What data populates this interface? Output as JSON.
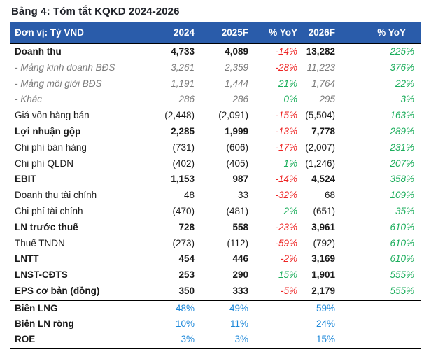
{
  "title": "Bảng 4: Tóm tắt KQKD 2024-2026",
  "table": {
    "unit_label": "Đơn vị: Tỷ VND",
    "columns": [
      "2024",
      "2025F",
      "% YoY",
      "2026F",
      "% YoY"
    ],
    "rows": [
      {
        "style": "bold",
        "label": "Doanh thu",
        "v2024": "4,733",
        "v2025": "4,089",
        "yoy25": "-14%",
        "v2026": "13,282",
        "yoy26": "225%"
      },
      {
        "style": "sub",
        "label": "- Mảng kinh doanh BĐS",
        "v2024": "3,261",
        "v2025": "2,359",
        "yoy25": "-28%",
        "v2026": "11,223",
        "yoy26": "376%"
      },
      {
        "style": "sub",
        "label": "- Mảng môi giới BĐS",
        "v2024": "1,191",
        "v2025": "1,444",
        "yoy25": "21%",
        "v2026": "1,764",
        "yoy26": "22%"
      },
      {
        "style": "sub",
        "label": "- Khác",
        "v2024": "286",
        "v2025": "286",
        "yoy25": "0%",
        "v2026": "295",
        "yoy26": "3%"
      },
      {
        "style": "normal",
        "label": "Giá vốn hàng bán",
        "v2024": "(2,448)",
        "v2025": "(2,091)",
        "yoy25": "-15%",
        "v2026": "(5,504)",
        "yoy26": "163%"
      },
      {
        "style": "bold",
        "label": "Lợi nhuận gộp",
        "v2024": "2,285",
        "v2025": "1,999",
        "yoy25": "-13%",
        "v2026": "7,778",
        "yoy26": "289%"
      },
      {
        "style": "normal",
        "label": "Chi phí bán hàng",
        "v2024": "(731)",
        "v2025": "(606)",
        "yoy25": "-17%",
        "v2026": "(2,007)",
        "yoy26": "231%"
      },
      {
        "style": "normal",
        "label": "Chi phí QLDN",
        "v2024": "(402)",
        "v2025": "(405)",
        "yoy25": "1%",
        "v2026": "(1,246)",
        "yoy26": "207%"
      },
      {
        "style": "bold",
        "label": "EBIT",
        "v2024": "1,153",
        "v2025": "987",
        "yoy25": "-14%",
        "v2026": "4,524",
        "yoy26": "358%"
      },
      {
        "style": "normal",
        "label": "Doanh thu tài chính",
        "v2024": "48",
        "v2025": "33",
        "yoy25": "-32%",
        "v2026": "68",
        "yoy26": "109%"
      },
      {
        "style": "normal",
        "label": "Chi phí tài chính",
        "v2024": "(470)",
        "v2025": "(481)",
        "yoy25": "2%",
        "v2026": "(651)",
        "yoy26": "35%"
      },
      {
        "style": "bold",
        "label": "LN trước thuế",
        "v2024": "728",
        "v2025": "558",
        "yoy25": "-23%",
        "v2026": "3,961",
        "yoy26": "610%"
      },
      {
        "style": "normal",
        "label": "Thuế TNDN",
        "v2024": "(273)",
        "v2025": "(112)",
        "yoy25": "-59%",
        "v2026": "(792)",
        "yoy26": "610%"
      },
      {
        "style": "bold",
        "label": "LNTT",
        "v2024": "454",
        "v2025": "446",
        "yoy25": "-2%",
        "v2026": "3,169",
        "yoy26": "610%"
      },
      {
        "style": "bold",
        "label": "LNST-CĐTS",
        "v2024": "253",
        "v2025": "290",
        "yoy25": "15%",
        "v2026": "1,901",
        "yoy26": "555%"
      },
      {
        "style": "bold",
        "label": "EPS cơ bản (đồng)",
        "v2024": "350",
        "v2025": "333",
        "yoy25": "-5%",
        "v2026": "2,179",
        "yoy26": "555%"
      }
    ],
    "ratio_rows": [
      {
        "label": "Biên LNG",
        "v2024": "48%",
        "v2025": "49%",
        "v2026": "59%"
      },
      {
        "label": "Biên LN ròng",
        "v2024": "10%",
        "v2025": "11%",
        "v2026": "24%"
      },
      {
        "label": "ROE",
        "v2024": "3%",
        "v2025": "3%",
        "v2026": "15%"
      }
    ]
  },
  "colors": {
    "header_bg": "#2a5caa",
    "header_text": "#ffffff",
    "title_text": "#20232a",
    "body_text": "#1a1a1a",
    "sub_gray": "#7b7b7b",
    "negative": "#ee2524",
    "positive": "#1cae5c",
    "ratio_blue": "#1b87d9",
    "rule_black": "#000000"
  }
}
